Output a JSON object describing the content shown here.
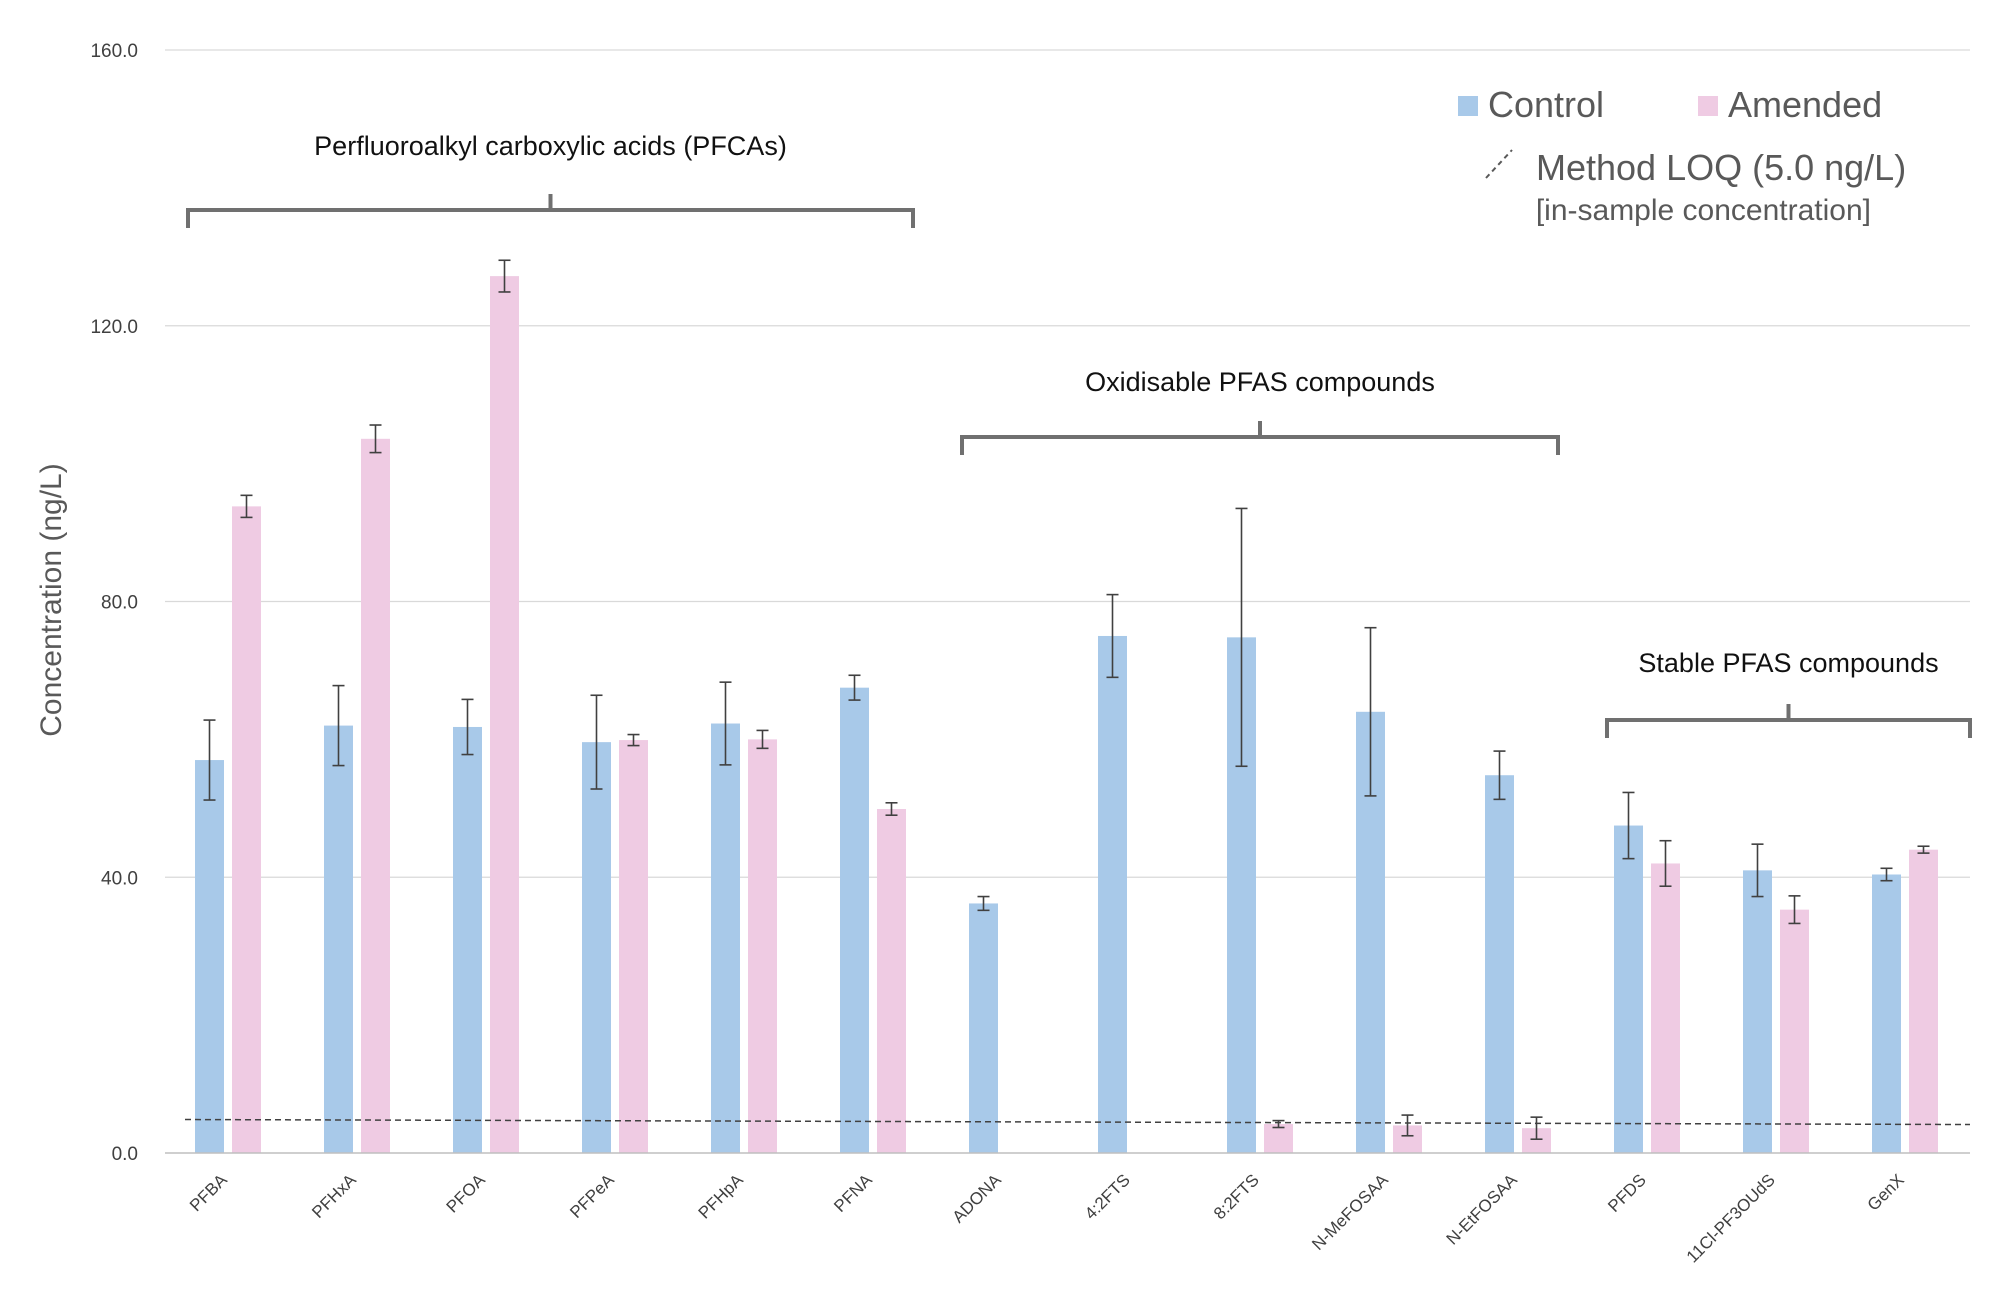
{
  "chart_data": {
    "type": "bar",
    "ylabel": "Concentration (ng/L)",
    "ylim": [
      0,
      160
    ],
    "yticks": [
      "0.0",
      "40.0",
      "80.0",
      "120.0",
      "160.0"
    ],
    "ytick_values": [
      0,
      40,
      80,
      120,
      160
    ],
    "grid": true,
    "legend_position": "top-right",
    "categories": [
      "PFBA",
      "PFHxA",
      "PFOA",
      "PFPeA",
      "PFHpA",
      "PFNA",
      "ADONA",
      "4:2FTS",
      "8:2FTS",
      "N-MeFOSAA",
      "N-EtFOSAA",
      "PFDS",
      "11Cl-PF3OUdS",
      "GenX"
    ],
    "series": [
      {
        "name": "Control",
        "color": "#a8c9e9",
        "values": [
          57.0,
          62.0,
          61.8,
          59.6,
          62.3,
          67.5,
          36.2,
          75.0,
          74.8,
          64.0,
          null,
          47.5,
          41.0,
          40.4
        ],
        "errors": [
          5.8,
          5.8,
          4.0,
          6.8,
          6.0,
          1.8,
          1.0,
          6.0,
          18.7,
          12.2,
          null,
          4.8,
          3.8,
          0.9
        ]
      },
      {
        "name": "Amended",
        "color": "#efcbe3",
        "values": [
          93.8,
          103.6,
          127.2,
          59.9,
          60.0,
          49.9,
          null,
          null,
          4.2,
          4.0,
          3.6,
          42.0,
          35.3,
          44.0
        ],
        "errors": [
          1.6,
          2.0,
          2.3,
          0.8,
          1.3,
          0.9,
          null,
          null,
          0.5,
          1.5,
          1.6,
          3.3,
          2.0,
          0.5
        ]
      }
    ],
    "extra_bars": [
      {
        "category": "N-EtFOSAA",
        "series": "Control",
        "value": 54.8,
        "error": 3.5
      }
    ],
    "reference_line": {
      "label": "Method LOQ (5.0 ng/L)",
      "sublabel": "[in-sample concentration]",
      "value": 5.0
    },
    "groups": [
      {
        "label": "Perfluoroalkyl carboxylic acids (PFCAs)",
        "from": "PFBA",
        "to": "PFNA"
      },
      {
        "label": "Oxidisable PFAS compounds",
        "from": "ADONA",
        "to": "N-EtFOSAA"
      },
      {
        "label": "Stable PFAS compounds",
        "from": "PFDS",
        "to": "GenX"
      }
    ]
  }
}
